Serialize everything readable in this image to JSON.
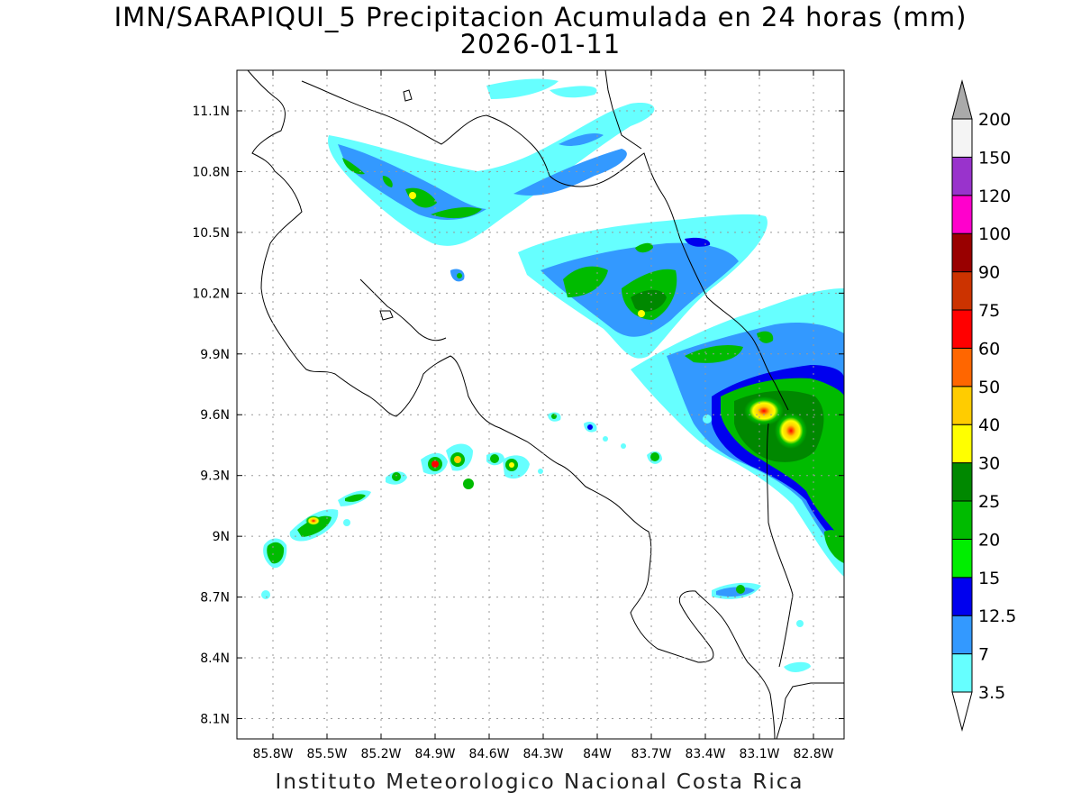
{
  "title": "IMN/SARAPIQUI_5 Precipitacion Acumulada en 24 horas (mm)",
  "date": "2026-01-11",
  "credit": "Instituto Meteorologico Nacional Costa Rica",
  "map": {
    "lon_range": [
      -86.0,
      -82.63
    ],
    "lat_range": [
      8.0,
      11.3
    ],
    "x_ticks": [
      {
        "value": -85.8,
        "label": "85.8W"
      },
      {
        "value": -85.5,
        "label": "85.5W"
      },
      {
        "value": -85.2,
        "label": "85.2W"
      },
      {
        "value": -84.9,
        "label": "84.9W"
      },
      {
        "value": -84.6,
        "label": "84.6W"
      },
      {
        "value": -84.3,
        "label": "84.3W"
      },
      {
        "value": -84.0,
        "label": "84W"
      },
      {
        "value": -83.7,
        "label": "83.7W"
      },
      {
        "value": -83.4,
        "label": "83.4W"
      },
      {
        "value": -83.1,
        "label": "83.1W"
      },
      {
        "value": -82.8,
        "label": "82.8W"
      }
    ],
    "y_ticks": [
      {
        "value": 11.1,
        "label": "11.1N"
      },
      {
        "value": 10.8,
        "label": "10.8N"
      },
      {
        "value": 10.5,
        "label": "10.5N"
      },
      {
        "value": 10.2,
        "label": "10.2N"
      },
      {
        "value": 9.9,
        "label": "9.9N"
      },
      {
        "value": 9.6,
        "label": "9.6N"
      },
      {
        "value": 9.3,
        "label": "9.3N"
      },
      {
        "value": 9.0,
        "label": "9N"
      },
      {
        "value": 8.7,
        "label": "8.7N"
      },
      {
        "value": 8.4,
        "label": "8.4N"
      },
      {
        "value": 8.1,
        "label": "8.1N"
      }
    ],
    "grid": "dotted"
  },
  "colorbar": {
    "orientation": "vertical",
    "levels": [
      "3.5",
      "7",
      "12.5",
      "15",
      "20",
      "25",
      "30",
      "40",
      "50",
      "60",
      "75",
      "90",
      "100",
      "120",
      "150",
      "200"
    ],
    "colors": [
      "#66ffff",
      "#3399ff",
      "#0000ee",
      "#00ee00",
      "#00bb00",
      "#008800",
      "#ffff00",
      "#ffcc00",
      "#ff6600",
      "#ff0000",
      "#cc3300",
      "#990000",
      "#ff00cc",
      "#9933cc",
      "#f4f4f4"
    ],
    "top_arrow_color": "#aaaaaa"
  }
}
